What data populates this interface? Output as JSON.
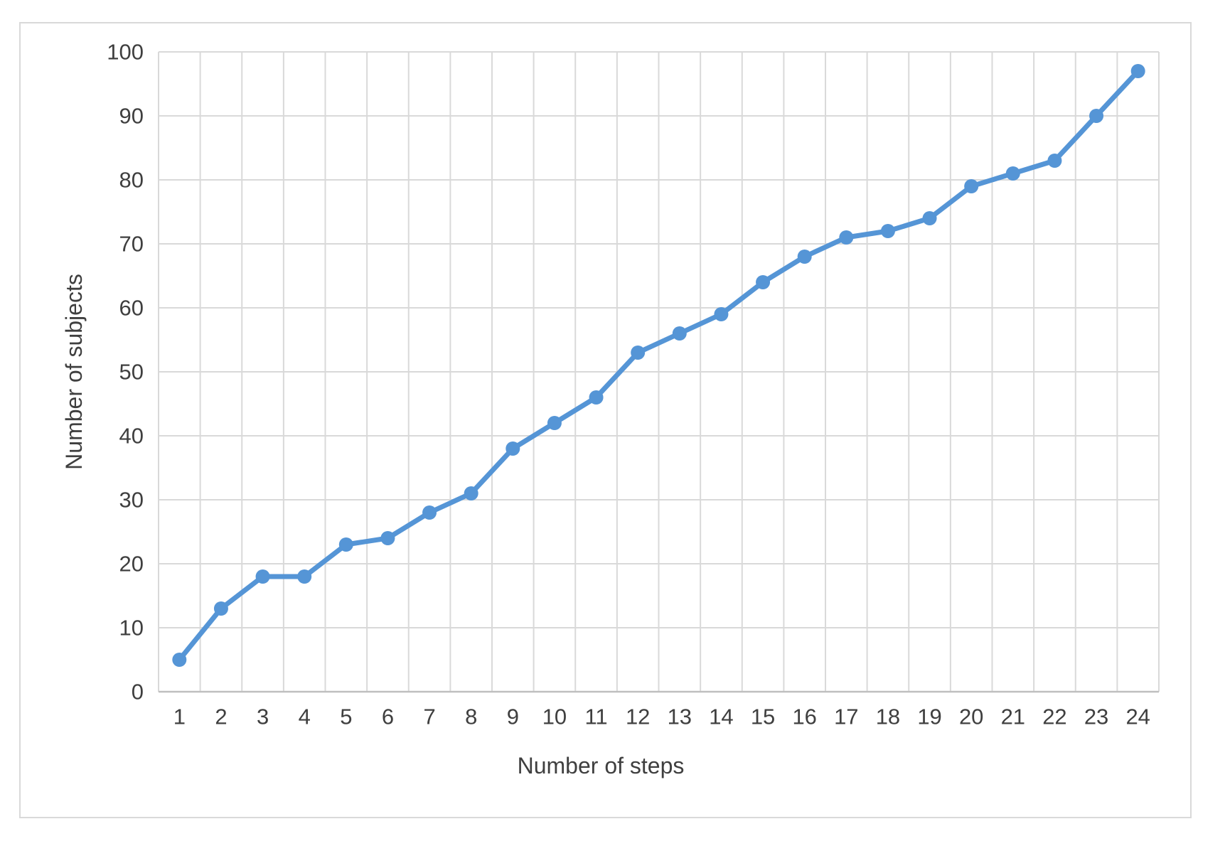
{
  "chart_data": {
    "type": "line",
    "title": "",
    "xlabel": "Number of steps",
    "ylabel": "Number of subjects",
    "categories": [
      "1",
      "2",
      "3",
      "4",
      "5",
      "6",
      "7",
      "8",
      "9",
      "10",
      "11",
      "12",
      "13",
      "14",
      "15",
      "16",
      "17",
      "18",
      "19",
      "20",
      "21",
      "22",
      "23",
      "24"
    ],
    "values": [
      5,
      13,
      18,
      18,
      23,
      24,
      28,
      31,
      38,
      42,
      46,
      53,
      56,
      59,
      64,
      68,
      71,
      72,
      74,
      79,
      81,
      83,
      90,
      97
    ],
    "yticks": [
      "0",
      "10",
      "20",
      "30",
      "40",
      "50",
      "60",
      "70",
      "80",
      "90",
      "100"
    ],
    "ylim": [
      0,
      100
    ],
    "ytick_step": 10,
    "grid": "both",
    "legend_position": "none",
    "marker": "circle"
  },
  "colors": {
    "line": "#5595d6",
    "marker": "#5595d6",
    "gridline": "#d9d9d9",
    "axis_line": "#bfbfbf",
    "text": "#3f3f3f",
    "chart_border": "#d9d9d9",
    "background": "#ffffff"
  }
}
